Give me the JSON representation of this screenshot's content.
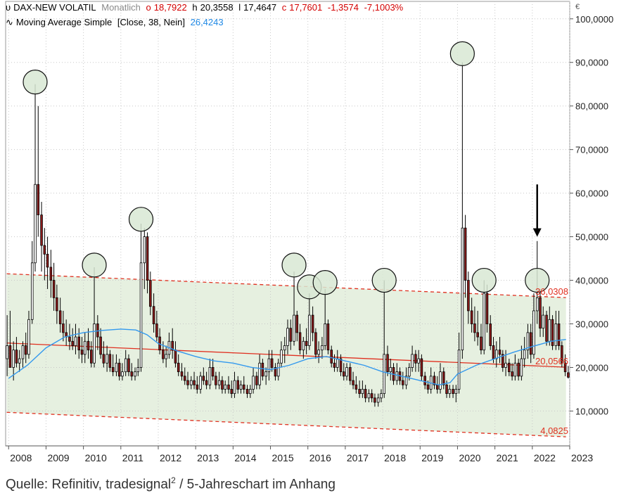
{
  "header": {
    "symbol": "DAX-NEW VOLATIL",
    "interval": "Monatlich",
    "open_label": "o",
    "open": "18,7922",
    "high_label": "h",
    "high": "20,3558",
    "low_label": "l",
    "low": "17,4647",
    "close_label": "c",
    "close": "17,7601",
    "change": "-1,3574",
    "change_pct": "-7,1003%",
    "indicator_name": "Moving Average Simple",
    "indicator_params": "[Close, 38, Nein]",
    "indicator_value": "26,4243"
  },
  "caption": {
    "text": "Quelle: Refinitiv, tradesignal",
    "sup": "2",
    "rest": " / 5-Jahreschart im Anhang"
  },
  "colors": {
    "up": "#ffffff",
    "down": "#8b1a1a",
    "wick": "#000000",
    "ma": "#3399ee",
    "channel": "#e03020",
    "band": "#e6f0e0",
    "circle": "#d8e8d4",
    "grid": "#c8c8c8"
  },
  "chart_data": {
    "type": "candlestick",
    "title": "DAX-NEW VOLATIL Monatlich",
    "currency_label": "€",
    "ylim": [
      2,
      104
    ],
    "y_ticks": [
      10,
      20,
      30,
      40,
      50,
      60,
      70,
      80,
      90,
      100
    ],
    "y_tick_labels": [
      "10,0000",
      "20,0000",
      "30,0000",
      "40,0000",
      "50,0000",
      "60,0000",
      "70,0000",
      "80,0000",
      "90,0000",
      "100,0000"
    ],
    "x_ticks": [
      2008,
      2009,
      2010,
      2011,
      2012,
      2013,
      2014,
      2015,
      2016,
      2017,
      2018,
      2019,
      2020,
      2021,
      2022,
      2023
    ],
    "x_tick_labels": [
      "2008",
      "2009",
      "2010",
      "2011",
      "2012",
      "2013",
      "2014",
      "2015",
      "2016",
      "2017",
      "2018",
      "2019",
      "2020",
      "2021",
      "2022",
      "2023"
    ],
    "x_range": [
      2007.92,
      2023.0
    ],
    "channel": {
      "upper": [
        [
          2007.95,
          41.5
        ],
        [
          2022.9,
          36.03
        ]
      ],
      "middle": [
        [
          2007.95,
          25.6
        ],
        [
          2022.9,
          20.06
        ]
      ],
      "lower": [
        [
          2007.95,
          9.7
        ],
        [
          2022.9,
          4.08
        ]
      ],
      "labels": [
        "36,0308",
        "20,0566",
        "4,0825"
      ]
    },
    "moving_average": [
      [
        2008.0,
        17.5
      ],
      [
        2008.5,
        20.5
      ],
      [
        2009.0,
        24.5
      ],
      [
        2009.5,
        27.0
      ],
      [
        2010.0,
        28.0
      ],
      [
        2010.5,
        28.5
      ],
      [
        2011.0,
        28.8
      ],
      [
        2011.4,
        28.6
      ],
      [
        2011.7,
        27.5
      ],
      [
        2012.0,
        25.5
      ],
      [
        2012.5,
        23.8
      ],
      [
        2013.0,
        22.5
      ],
      [
        2013.5,
        21.5
      ],
      [
        2014.0,
        21.0
      ],
      [
        2014.5,
        20.0
      ],
      [
        2015.0,
        19.5
      ],
      [
        2015.5,
        20.5
      ],
      [
        2016.0,
        22.0
      ],
      [
        2016.5,
        22.5
      ],
      [
        2017.0,
        21.5
      ],
      [
        2017.5,
        20.5
      ],
      [
        2018.0,
        19.0
      ],
      [
        2018.5,
        18.0
      ],
      [
        2019.0,
        17.0
      ],
      [
        2019.5,
        16.0
      ],
      [
        2019.8,
        16.5
      ],
      [
        2020.0,
        18.5
      ],
      [
        2020.5,
        20.5
      ],
      [
        2021.0,
        22.0
      ],
      [
        2021.5,
        23.5
      ],
      [
        2022.0,
        24.8
      ],
      [
        2022.5,
        26.0
      ],
      [
        2022.9,
        26.42
      ]
    ],
    "candles": [
      [
        2007.96,
        22,
        32,
        18,
        25
      ],
      [
        2008.04,
        25,
        33,
        20,
        20
      ],
      [
        2008.13,
        20,
        26,
        17,
        24
      ],
      [
        2008.21,
        24,
        27,
        20,
        21
      ],
      [
        2008.29,
        21,
        24,
        19,
        22
      ],
      [
        2008.38,
        22,
        26,
        20,
        25
      ],
      [
        2008.46,
        25,
        28,
        21,
        23
      ],
      [
        2008.54,
        23,
        33,
        22,
        31
      ],
      [
        2008.63,
        31,
        49,
        30,
        44
      ],
      [
        2008.71,
        44,
        85,
        42,
        62
      ],
      [
        2008.79,
        62,
        80,
        50,
        55
      ],
      [
        2008.88,
        55,
        58,
        42,
        48
      ],
      [
        2008.96,
        48,
        52,
        40,
        46
      ],
      [
        2009.04,
        46,
        50,
        38,
        43
      ],
      [
        2009.13,
        43,
        47,
        36,
        40
      ],
      [
        2009.21,
        40,
        44,
        33,
        36
      ],
      [
        2009.29,
        36,
        39,
        30,
        33
      ],
      [
        2009.38,
        33,
        36,
        28,
        30
      ],
      [
        2009.46,
        30,
        33,
        26,
        28
      ],
      [
        2009.54,
        28,
        31,
        25,
        27
      ],
      [
        2009.63,
        27,
        30,
        24,
        26
      ],
      [
        2009.71,
        26,
        29,
        24,
        25
      ],
      [
        2009.79,
        25,
        30,
        23,
        27
      ],
      [
        2009.88,
        27,
        29,
        22,
        24
      ],
      [
        2009.96,
        24,
        27,
        21,
        23
      ],
      [
        2010.04,
        23,
        28,
        21,
        26
      ],
      [
        2010.13,
        26,
        29,
        22,
        24
      ],
      [
        2010.21,
        24,
        26,
        20,
        21
      ],
      [
        2010.29,
        21,
        43,
        20,
        30
      ],
      [
        2010.38,
        30,
        32,
        24,
        27
      ],
      [
        2010.46,
        27,
        29,
        22,
        23
      ],
      [
        2010.54,
        23,
        26,
        20,
        21
      ],
      [
        2010.63,
        21,
        25,
        19,
        23
      ],
      [
        2010.71,
        23,
        24,
        19,
        20
      ],
      [
        2010.79,
        20,
        23,
        18,
        19
      ],
      [
        2010.88,
        19,
        23,
        18,
        21
      ],
      [
        2010.96,
        21,
        22,
        17,
        18
      ],
      [
        2011.04,
        18,
        21,
        17,
        19
      ],
      [
        2011.13,
        19,
        24,
        18,
        22
      ],
      [
        2011.21,
        22,
        23,
        18,
        19
      ],
      [
        2011.29,
        19,
        21,
        17,
        18
      ],
      [
        2011.38,
        18,
        20,
        17,
        19
      ],
      [
        2011.46,
        19,
        22,
        18,
        20
      ],
      [
        2011.54,
        20,
        53,
        19,
        44
      ],
      [
        2011.63,
        44,
        52,
        38,
        50
      ],
      [
        2011.71,
        50,
        51,
        37,
        40
      ],
      [
        2011.79,
        40,
        42,
        32,
        34
      ],
      [
        2011.88,
        34,
        37,
        28,
        30
      ],
      [
        2011.96,
        30,
        33,
        26,
        27
      ],
      [
        2012.04,
        27,
        29,
        23,
        24
      ],
      [
        2012.13,
        24,
        26,
        21,
        22
      ],
      [
        2012.21,
        22,
        25,
        20,
        23
      ],
      [
        2012.29,
        23,
        28,
        22,
        26
      ],
      [
        2012.38,
        26,
        29,
        22,
        24
      ],
      [
        2012.46,
        24,
        26,
        20,
        21
      ],
      [
        2012.54,
        21,
        23,
        18,
        19
      ],
      [
        2012.63,
        19,
        21,
        17,
        18
      ],
      [
        2012.71,
        18,
        20,
        16,
        17
      ],
      [
        2012.79,
        17,
        19,
        15,
        16
      ],
      [
        2012.88,
        16,
        18,
        15,
        17
      ],
      [
        2012.96,
        17,
        19,
        15,
        16
      ],
      [
        2013.04,
        16,
        18,
        14,
        15
      ],
      [
        2013.13,
        15,
        19,
        14,
        18
      ],
      [
        2013.21,
        18,
        20,
        16,
        17
      ],
      [
        2013.29,
        17,
        19,
        15,
        16
      ],
      [
        2013.38,
        16,
        22,
        15,
        20
      ],
      [
        2013.46,
        20,
        22,
        17,
        18
      ],
      [
        2013.54,
        18,
        19,
        15,
        16
      ],
      [
        2013.63,
        16,
        19,
        15,
        17
      ],
      [
        2013.71,
        17,
        18,
        14,
        15
      ],
      [
        2013.79,
        15,
        17,
        14,
        16
      ],
      [
        2013.88,
        16,
        18,
        14,
        15
      ],
      [
        2013.96,
        15,
        17,
        13,
        14
      ],
      [
        2014.04,
        14,
        19,
        13,
        17
      ],
      [
        2014.13,
        17,
        18,
        14,
        15
      ],
      [
        2014.21,
        15,
        17,
        14,
        16
      ],
      [
        2014.29,
        16,
        18,
        14,
        15
      ],
      [
        2014.38,
        15,
        16,
        13,
        14
      ],
      [
        2014.46,
        14,
        16,
        13,
        15
      ],
      [
        2014.54,
        15,
        20,
        14,
        18
      ],
      [
        2014.63,
        18,
        19,
        15,
        16
      ],
      [
        2014.71,
        16,
        23,
        15,
        21
      ],
      [
        2014.79,
        21,
        22,
        17,
        18
      ],
      [
        2014.88,
        18,
        20,
        16,
        19
      ],
      [
        2014.96,
        19,
        24,
        17,
        22
      ],
      [
        2015.04,
        22,
        24,
        19,
        20
      ],
      [
        2015.13,
        20,
        21,
        17,
        18
      ],
      [
        2015.21,
        18,
        22,
        17,
        21
      ],
      [
        2015.29,
        21,
        26,
        20,
        24
      ],
      [
        2015.38,
        24,
        27,
        21,
        25
      ],
      [
        2015.46,
        25,
        31,
        23,
        29
      ],
      [
        2015.54,
        29,
        31,
        24,
        26
      ],
      [
        2015.63,
        26,
        42,
        25,
        32
      ],
      [
        2015.71,
        32,
        33,
        26,
        28
      ],
      [
        2015.79,
        28,
        30,
        23,
        24
      ],
      [
        2015.88,
        24,
        27,
        22,
        26
      ],
      [
        2015.96,
        26,
        29,
        23,
        25
      ],
      [
        2016.04,
        25,
        37,
        24,
        32
      ],
      [
        2016.13,
        32,
        34,
        26,
        28
      ],
      [
        2016.21,
        28,
        29,
        22,
        23
      ],
      [
        2016.29,
        23,
        26,
        21,
        24
      ],
      [
        2016.38,
        24,
        27,
        22,
        25
      ],
      [
        2016.46,
        25,
        38,
        24,
        30
      ],
      [
        2016.54,
        30,
        31,
        23,
        24
      ],
      [
        2016.63,
        24,
        25,
        20,
        21
      ],
      [
        2016.71,
        21,
        23,
        19,
        20
      ],
      [
        2016.79,
        20,
        24,
        19,
        22
      ],
      [
        2016.88,
        22,
        23,
        18,
        19
      ],
      [
        2016.96,
        19,
        21,
        17,
        18
      ],
      [
        2017.04,
        18,
        21,
        17,
        20
      ],
      [
        2017.13,
        20,
        21,
        16,
        17
      ],
      [
        2017.21,
        17,
        19,
        15,
        16
      ],
      [
        2017.29,
        16,
        18,
        14,
        15
      ],
      [
        2017.38,
        15,
        17,
        13,
        14
      ],
      [
        2017.46,
        14,
        17,
        13,
        15
      ],
      [
        2017.54,
        15,
        16,
        12,
        13
      ],
      [
        2017.63,
        13,
        15,
        12,
        14
      ],
      [
        2017.71,
        14,
        15,
        12,
        13
      ],
      [
        2017.79,
        13,
        14,
        11,
        12
      ],
      [
        2017.88,
        12,
        14,
        11,
        13
      ],
      [
        2017.96,
        13,
        15,
        12,
        14
      ],
      [
        2018.04,
        14,
        40,
        13,
        23
      ],
      [
        2018.13,
        23,
        25,
        18,
        19
      ],
      [
        2018.21,
        19,
        22,
        17,
        20
      ],
      [
        2018.29,
        20,
        21,
        16,
        17
      ],
      [
        2018.38,
        17,
        21,
        16,
        19
      ],
      [
        2018.46,
        19,
        20,
        16,
        17
      ],
      [
        2018.54,
        17,
        19,
        15,
        16
      ],
      [
        2018.63,
        16,
        20,
        15,
        18
      ],
      [
        2018.71,
        18,
        21,
        17,
        20
      ],
      [
        2018.79,
        20,
        25,
        19,
        23
      ],
      [
        2018.88,
        23,
        24,
        19,
        21
      ],
      [
        2018.96,
        21,
        24,
        19,
        22
      ],
      [
        2019.04,
        22,
        23,
        17,
        18
      ],
      [
        2019.13,
        18,
        19,
        15,
        16
      ],
      [
        2019.21,
        16,
        17,
        14,
        15
      ],
      [
        2019.29,
        15,
        20,
        14,
        18
      ],
      [
        2019.38,
        18,
        19,
        15,
        16
      ],
      [
        2019.46,
        16,
        18,
        14,
        15
      ],
      [
        2019.54,
        15,
        21,
        14,
        19
      ],
      [
        2019.63,
        19,
        20,
        15,
        16
      ],
      [
        2019.71,
        16,
        17,
        13,
        14
      ],
      [
        2019.79,
        14,
        16,
        13,
        15
      ],
      [
        2019.88,
        15,
        16,
        13,
        14
      ],
      [
        2019.96,
        14,
        16,
        12,
        15
      ],
      [
        2020.04,
        15,
        28,
        14,
        24
      ],
      [
        2020.13,
        24,
        90,
        22,
        52
      ],
      [
        2020.21,
        52,
        55,
        36,
        40
      ],
      [
        2020.29,
        40,
        42,
        30,
        33
      ],
      [
        2020.38,
        33,
        36,
        28,
        30
      ],
      [
        2020.46,
        30,
        34,
        26,
        28
      ],
      [
        2020.54,
        28,
        33,
        25,
        27
      ],
      [
        2020.63,
        27,
        30,
        23,
        24
      ],
      [
        2020.71,
        24,
        40,
        23,
        37
      ],
      [
        2020.79,
        37,
        39,
        28,
        30
      ],
      [
        2020.88,
        30,
        32,
        24,
        25
      ],
      [
        2020.96,
        25,
        27,
        21,
        22
      ],
      [
        2021.04,
        22,
        26,
        20,
        24
      ],
      [
        2021.13,
        24,
        27,
        21,
        23
      ],
      [
        2021.21,
        23,
        24,
        19,
        20
      ],
      [
        2021.29,
        20,
        24,
        18,
        21
      ],
      [
        2021.38,
        21,
        22,
        18,
        19
      ],
      [
        2021.46,
        19,
        21,
        17,
        18
      ],
      [
        2021.54,
        18,
        23,
        17,
        21
      ],
      [
        2021.63,
        21,
        22,
        17,
        18
      ],
      [
        2021.71,
        18,
        25,
        17,
        22
      ],
      [
        2021.79,
        22,
        27,
        20,
        24
      ],
      [
        2021.88,
        24,
        30,
        22,
        28
      ],
      [
        2021.96,
        28,
        30,
        21,
        23
      ],
      [
        2022.04,
        23,
        37,
        22,
        33
      ],
      [
        2022.13,
        33,
        49,
        30,
        36
      ],
      [
        2022.21,
        36,
        38,
        27,
        29
      ],
      [
        2022.29,
        29,
        34,
        27,
        32
      ],
      [
        2022.38,
        32,
        33,
        25,
        26
      ],
      [
        2022.46,
        26,
        34,
        25,
        31
      ],
      [
        2022.54,
        31,
        32,
        24,
        25
      ],
      [
        2022.63,
        25,
        33,
        24,
        30
      ],
      [
        2022.71,
        30,
        33,
        24,
        25
      ],
      [
        2022.79,
        25,
        26,
        20,
        21
      ],
      [
        2022.88,
        21,
        23,
        18,
        19
      ],
      [
        2022.96,
        18.79,
        20.36,
        17.46,
        17.76
      ]
    ],
    "circled_peaks": [
      {
        "year": 2008.71,
        "value": 85.5
      },
      {
        "year": 2010.29,
        "value": 43.5
      },
      {
        "year": 2011.54,
        "value": 54
      },
      {
        "year": 2015.63,
        "value": 43.5
      },
      {
        "year": 2016.04,
        "value": 38.5
      },
      {
        "year": 2016.46,
        "value": 39.5
      },
      {
        "year": 2018.04,
        "value": 40
      },
      {
        "year": 2020.13,
        "value": 92
      },
      {
        "year": 2020.71,
        "value": 40
      },
      {
        "year": 2022.13,
        "value": 40
      }
    ],
    "arrow": {
      "year": 2022.13,
      "from": 62,
      "to": 50
    }
  }
}
